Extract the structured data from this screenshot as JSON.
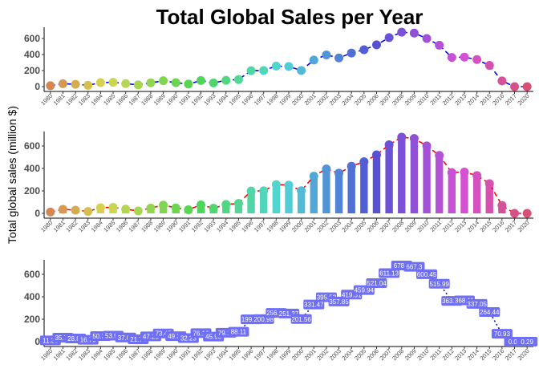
{
  "title": "Total Global Sales per Year",
  "ylabel": "Total global sales (million $)",
  "chart_data": [
    {
      "type": "line",
      "variant": "dots joined by dashed line, points colored by year (rainbow)",
      "x": [
        "1980",
        "1981",
        "1982",
        "1983",
        "1984",
        "1985",
        "1986",
        "1987",
        "1988",
        "1989",
        "1990",
        "1991",
        "1992",
        "1993",
        "1994",
        "1995",
        "1996",
        "1997",
        "1998",
        "1999",
        "2000",
        "2001",
        "2002",
        "2003",
        "2004",
        "2005",
        "2006",
        "2007",
        "2008",
        "2009",
        "2010",
        "2011",
        "2012",
        "2013",
        "2014",
        "2015",
        "2016",
        "2017",
        "2020"
      ],
      "values": [
        11.38,
        35.77,
        28.86,
        16.79,
        50.36,
        53.94,
        37.07,
        21.74,
        47.22,
        73.45,
        49.39,
        32.23,
        76.16,
        45.98,
        79.17,
        88.11,
        199.15,
        200.98,
        256.47,
        251.27,
        201.56,
        331.47,
        395.52,
        357.85,
        419.31,
        459.94,
        521.04,
        611.13,
        678.9,
        667.3,
        600.45,
        515.99,
        363.54,
        368.11,
        337.05,
        264.44,
        70.93,
        0.05,
        0.29
      ],
      "ylim": [
        0,
        700
      ],
      "yticks": [
        "0",
        "200",
        "400",
        "600"
      ],
      "line_color": "#0000ff",
      "grid": false
    },
    {
      "type": "bar",
      "variant": "lollipop: bars with dots on top joined by dashed red line, colored by year (rainbow)",
      "x": [
        "1980",
        "1981",
        "1982",
        "1983",
        "1984",
        "1985",
        "1986",
        "1987",
        "1988",
        "1989",
        "1990",
        "1991",
        "1992",
        "1993",
        "1994",
        "1995",
        "1996",
        "1997",
        "1998",
        "1999",
        "2000",
        "2001",
        "2002",
        "2003",
        "2004",
        "2005",
        "2006",
        "2007",
        "2008",
        "2009",
        "2010",
        "2011",
        "2012",
        "2013",
        "2014",
        "2015",
        "2016",
        "2017",
        "2020"
      ],
      "values": [
        11.38,
        35.77,
        28.86,
        16.79,
        50.36,
        53.94,
        37.07,
        21.74,
        47.22,
        73.45,
        49.39,
        32.23,
        76.16,
        45.98,
        79.17,
        88.11,
        199.15,
        200.98,
        256.47,
        251.27,
        201.56,
        331.47,
        395.52,
        357.85,
        419.31,
        459.94,
        521.04,
        611.13,
        678.9,
        667.3,
        600.45,
        515.99,
        363.54,
        368.11,
        337.05,
        264.44,
        70.93,
        0.05,
        0.29
      ],
      "ylim": [
        0,
        700
      ],
      "yticks": [
        "0",
        "200",
        "400",
        "600"
      ],
      "line_color": "#ff0000",
      "grid": false
    },
    {
      "type": "line",
      "variant": "labeled points: value labels in boxes connected by dotted line",
      "x": [
        "1980",
        "1981",
        "1982",
        "1983",
        "1984",
        "1985",
        "1986",
        "1987",
        "1988",
        "1989",
        "1990",
        "1991",
        "1992",
        "1993",
        "1994",
        "1995",
        "1996",
        "1997",
        "1998",
        "1999",
        "2000",
        "2001",
        "2002",
        "2003",
        "2004",
        "2005",
        "2006",
        "2007",
        "2008",
        "2009",
        "2010",
        "2011",
        "2012",
        "2013",
        "2014",
        "2015",
        "2016",
        "2017",
        "2020"
      ],
      "values": [
        11.38,
        35.77,
        28.86,
        16.79,
        50.36,
        53.94,
        37.07,
        21.74,
        47.22,
        73.45,
        49.39,
        32.23,
        76.16,
        45.98,
        79.17,
        88.11,
        199.15,
        200.98,
        256.47,
        251.27,
        201.56,
        331.47,
        395.52,
        357.85,
        419.31,
        459.94,
        521.04,
        611.13,
        678.9,
        667.3,
        600.45,
        515.99,
        363.54,
        368.11,
        337.05,
        264.44,
        70.93,
        0.05,
        0.29
      ],
      "labels": [
        "11.38",
        "35.77",
        "28.86",
        "16.79",
        "50.36",
        "53.94",
        "37.07",
        "21.74",
        "47.22",
        "73.45",
        "49.39",
        "32.23",
        "76.16",
        "45.98",
        "79.17",
        "88.11",
        "199.15",
        "200.98",
        "256.47",
        "251.27",
        "201.56",
        "331.47",
        "395.52",
        "357.85",
        "419.31",
        "459.94",
        "521.04",
        "611.13",
        "678.9",
        "667.3",
        "600.45",
        "515.99",
        "363.54",
        "368.11",
        "337.05",
        "264.44",
        "70.93",
        "0.05",
        "0.29"
      ],
      "ylim": [
        0,
        700
      ],
      "yticks": [
        "0",
        "200",
        "400",
        "600"
      ],
      "label_fill": "#6f6ff6",
      "grid": false
    }
  ]
}
